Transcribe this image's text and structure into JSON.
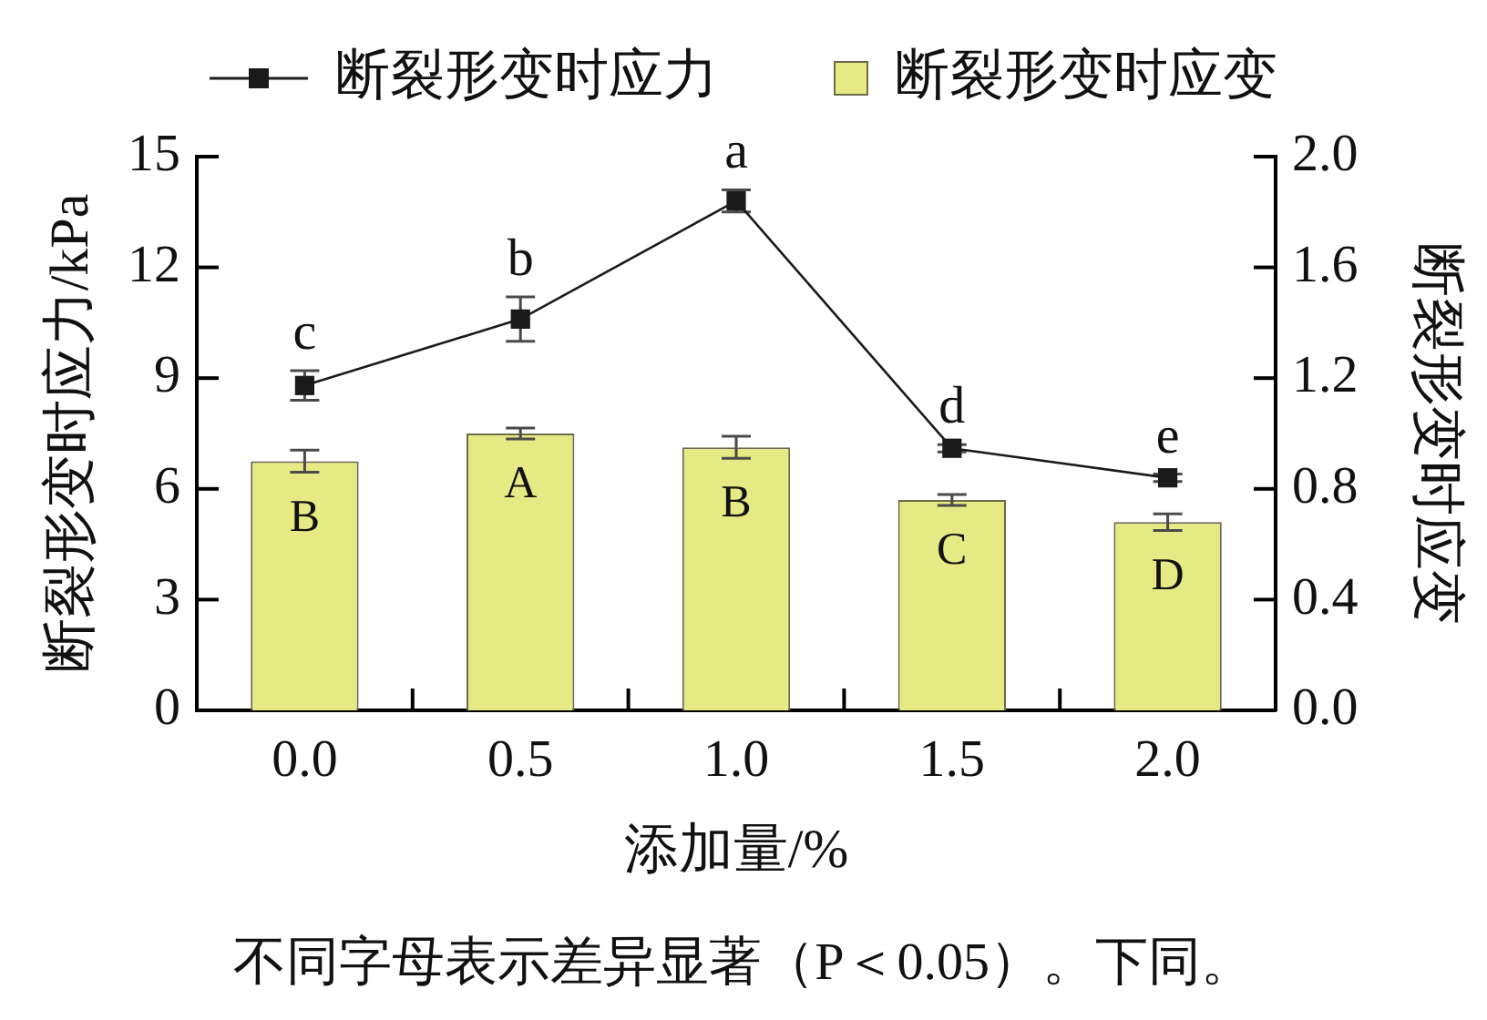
{
  "chart_data": {
    "type": "bar",
    "categories": [
      "0.0",
      "0.5",
      "1.0",
      "1.5",
      "2.0"
    ],
    "xlabel": "添加量/%",
    "ylabel": "断裂形变时应力/kPa",
    "y2label": "断裂形变时应变",
    "ylim": [
      0,
      15
    ],
    "yticks": [
      0,
      3,
      6,
      9,
      12,
      15
    ],
    "y2lim": [
      0,
      2.0
    ],
    "y2ticks": [
      {
        "value": 0,
        "label": "0.0"
      },
      0.4,
      0.8,
      1.2,
      1.6,
      {
        "value": 2.0,
        "label": "2.0"
      }
    ],
    "series": [
      {
        "name": "断裂形变时应力",
        "type": "line",
        "color": "#1a1a1a",
        "values": [
          8.8,
          10.6,
          13.8,
          7.1,
          6.3
        ],
        "errors": [
          0.4,
          0.6,
          0.3,
          0.1,
          0.1
        ],
        "value_labels": [
          "c",
          "b",
          "a",
          "d",
          "e"
        ]
      },
      {
        "name": "断裂形变时应变",
        "axis": "y2",
        "color": "#e5ea84",
        "values": [
          0.9,
          1.0,
          0.95,
          0.76,
          0.68
        ],
        "errors": [
          0.04,
          0.02,
          0.04,
          0.02,
          0.03
        ],
        "value_labels": [
          "B",
          "A",
          "B",
          "C",
          "D"
        ]
      }
    ],
    "legend": "top",
    "marker": "square",
    "annotations": [
      "不同字母表示差异显著（P＜0.05）。下同。"
    ]
  }
}
